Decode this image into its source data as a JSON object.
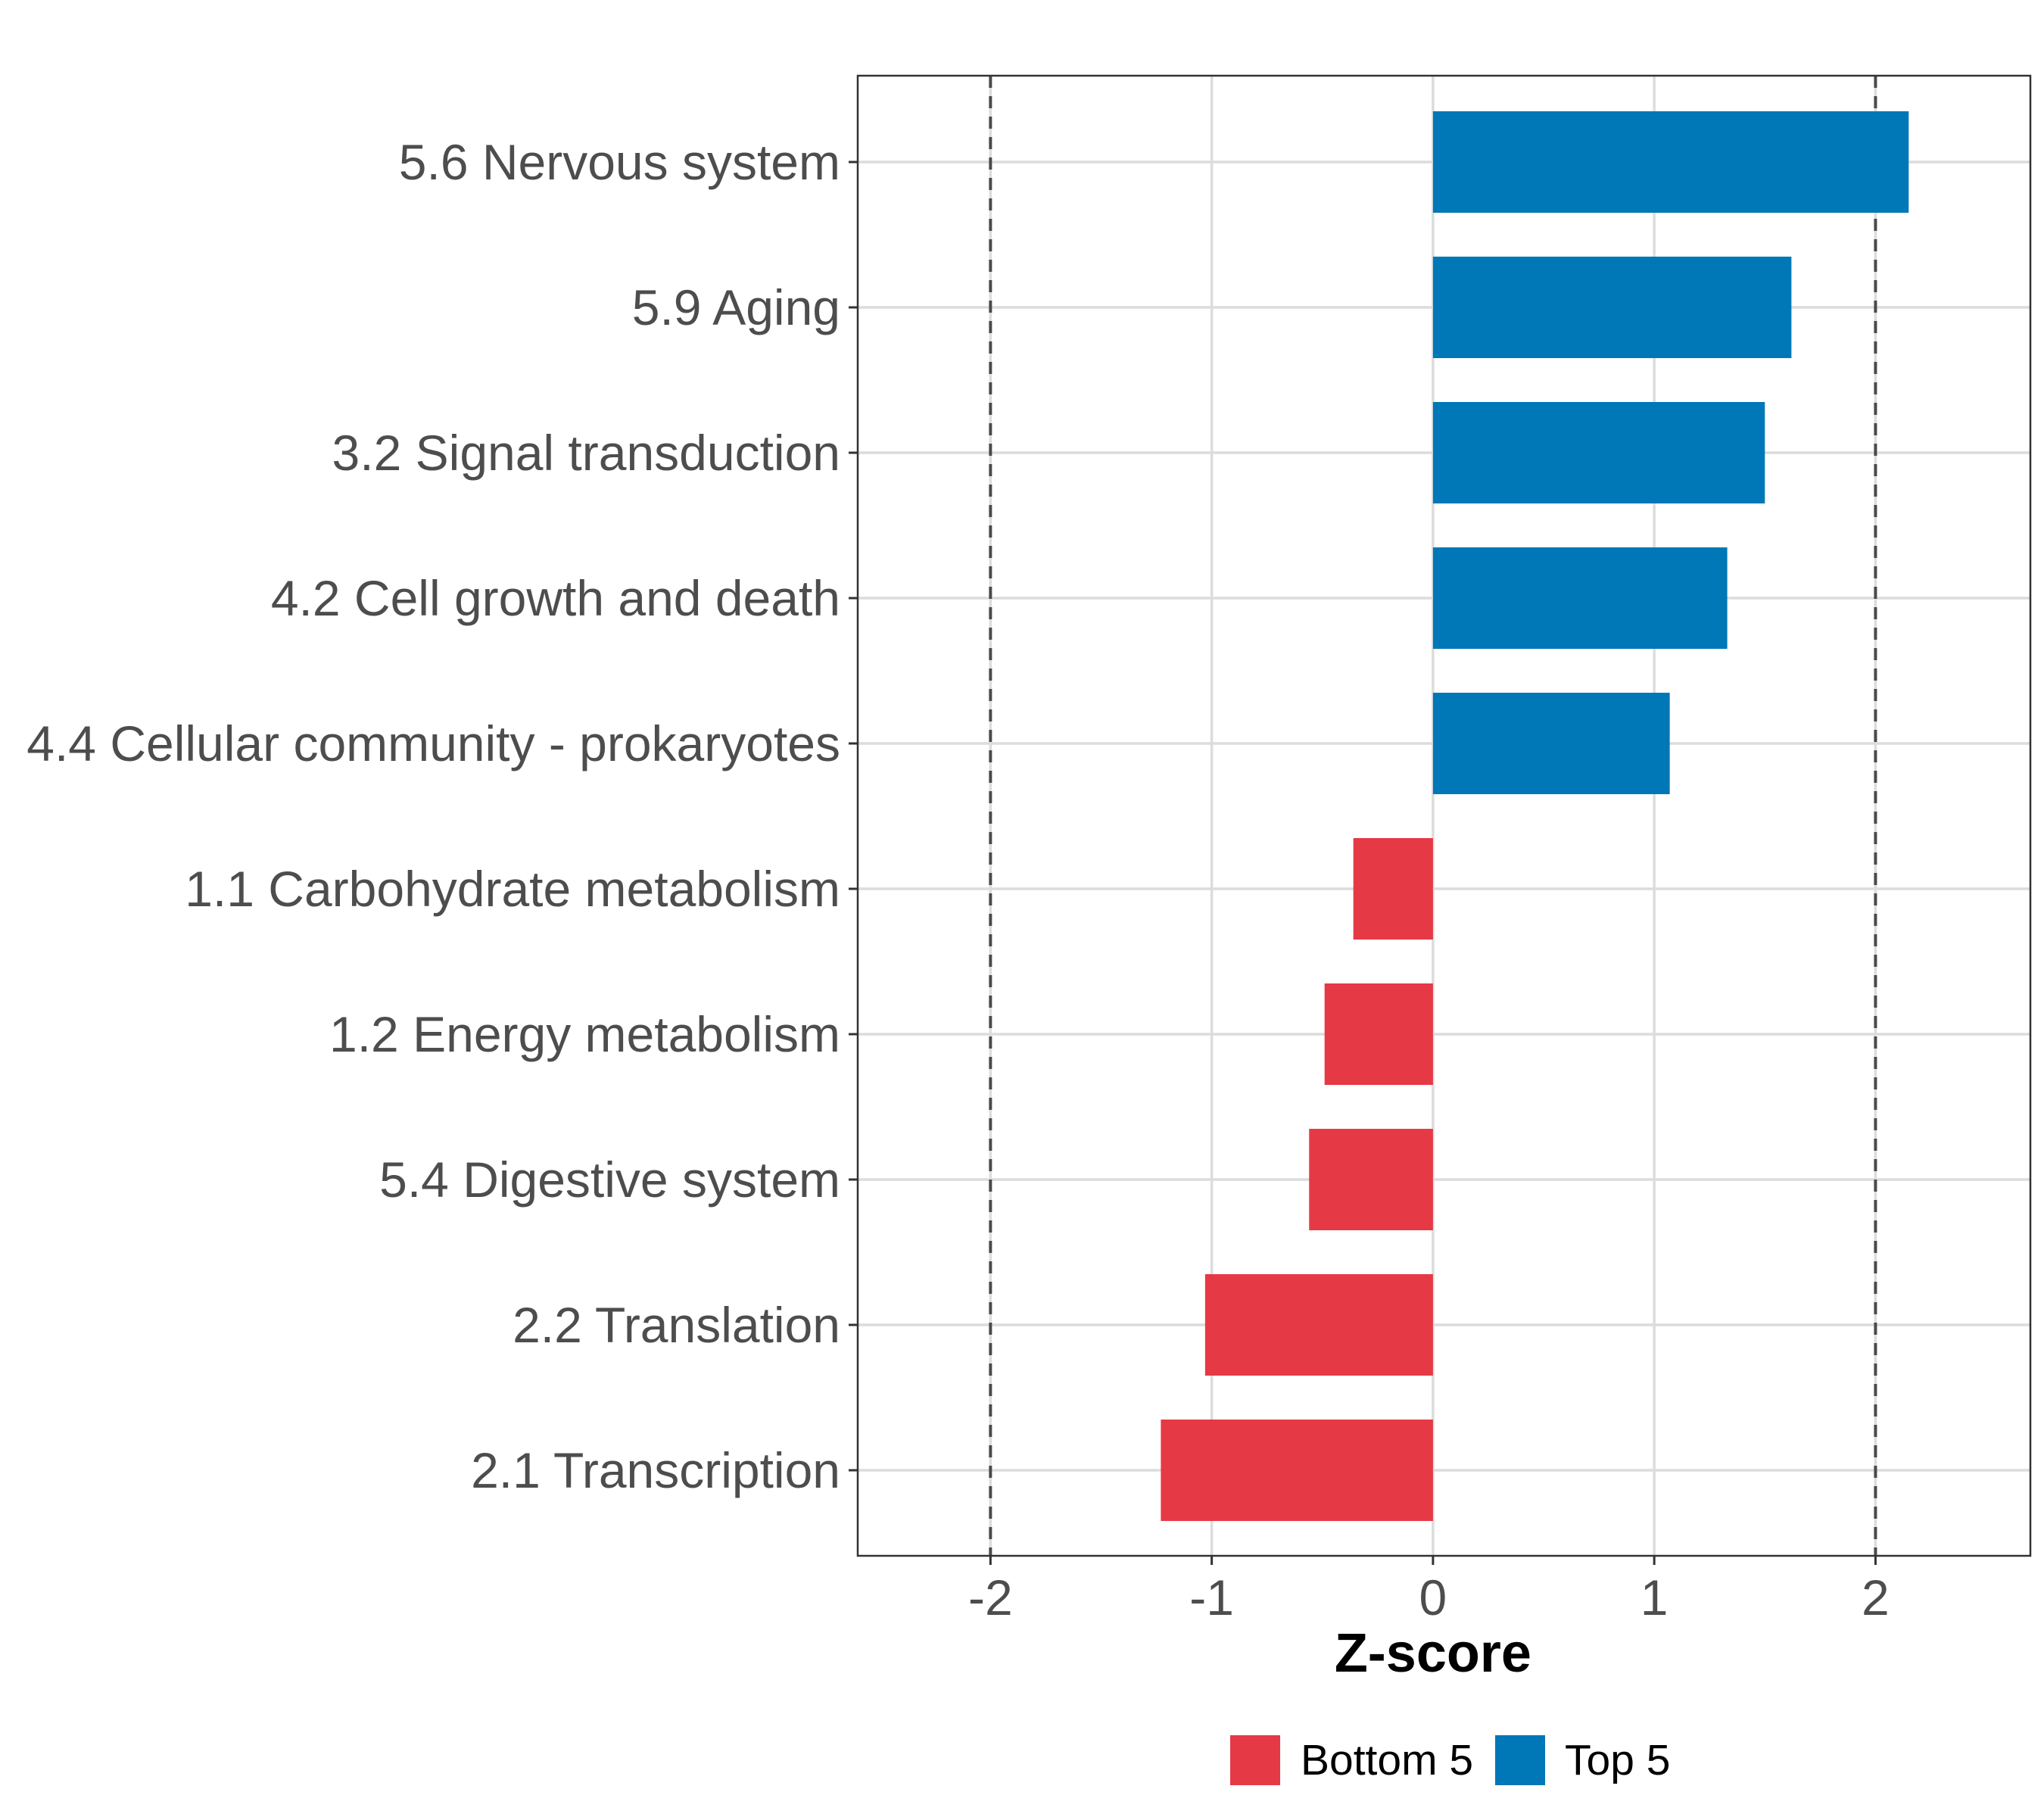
{
  "chart_data": {
    "type": "bar",
    "orientation": "horizontal",
    "title": "",
    "xlabel": "Z-score",
    "ylabel": "",
    "xlim": [
      -2.6,
      2.7
    ],
    "xticks": [
      -2,
      -1,
      0,
      1,
      2
    ],
    "xtick_labels": [
      "-2",
      "-1",
      "0",
      "1",
      "2"
    ],
    "reference_lines": [
      -2,
      2
    ],
    "grid": true,
    "legend_position": "bottom",
    "categories": [
      "5.6 Nervous system",
      "5.9 Aging",
      "3.2 Signal transduction",
      "4.2 Cell growth and death",
      "4.4 Cellular community - prokaryotes",
      "1.1 Carbohydrate metabolism",
      "1.2 Energy metabolism",
      "5.4 Digestive system",
      "2.2 Translation",
      "2.1 Transcription"
    ],
    "values": [
      2.15,
      1.62,
      1.5,
      1.33,
      1.07,
      -0.36,
      -0.49,
      -0.56,
      -1.03,
      -1.23
    ],
    "groups": [
      "Top 5",
      "Top 5",
      "Top 5",
      "Top 5",
      "Top 5",
      "Bottom 5",
      "Bottom 5",
      "Bottom 5",
      "Bottom 5",
      "Bottom 5"
    ],
    "legend": [
      {
        "name": "Bottom 5",
        "color": "#E63946"
      },
      {
        "name": "Top 5",
        "color": "#0077B6"
      }
    ]
  }
}
